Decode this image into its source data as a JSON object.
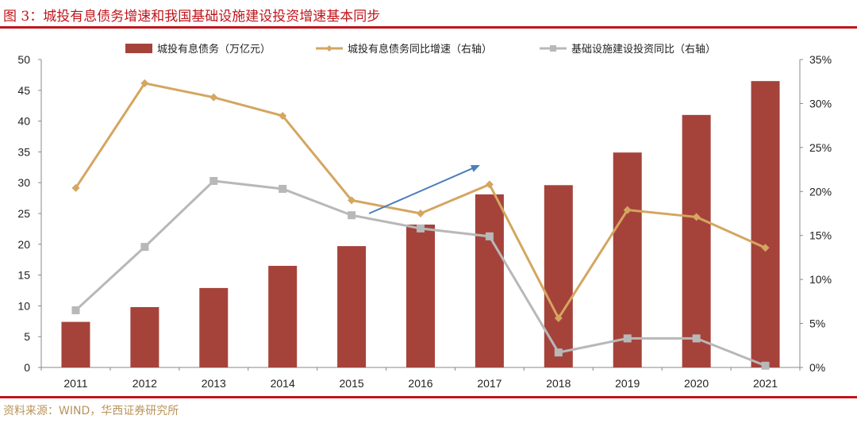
{
  "title": "图 3：城投有息债务增速和我国基础设施建设投资增速基本同步",
  "source": "资料来源：WIND，华西证券研究所",
  "chart_data": {
    "type": "bar+line",
    "categories": [
      "2011",
      "2012",
      "2013",
      "2014",
      "2015",
      "2016",
      "2017",
      "2018",
      "2019",
      "2020",
      "2021"
    ],
    "y_left": {
      "range": [
        0,
        50
      ],
      "ticks": [
        "0",
        "5",
        "10",
        "15",
        "20",
        "25",
        "30",
        "35",
        "40",
        "45",
        "50"
      ]
    },
    "y_right": {
      "range": [
        0,
        35
      ],
      "ticks": [
        "0%",
        "5%",
        "10%",
        "15%",
        "20%",
        "25%",
        "30%",
        "35%"
      ]
    },
    "legend_position": "top",
    "grid": false,
    "series": [
      {
        "name": "城投有息债务（万亿元）",
        "type": "bar",
        "axis": "left",
        "color": "#a5433a",
        "values": [
          7.4,
          9.8,
          12.9,
          16.5,
          19.7,
          23.2,
          28.1,
          29.6,
          34.9,
          41.0,
          46.5
        ]
      },
      {
        "name": "城投有息债务同比增速（右轴）",
        "type": "line",
        "axis": "right",
        "color": "#d4a660",
        "marker": "diamond",
        "values": [
          20.4,
          32.3,
          30.7,
          28.6,
          19.0,
          17.5,
          20.8,
          5.6,
          17.9,
          17.1,
          13.6
        ]
      },
      {
        "name": "基础设施建设投资同比（右轴）",
        "type": "line",
        "axis": "right",
        "color": "#b8b8b8",
        "marker": "square",
        "values": [
          6.5,
          13.7,
          21.2,
          20.3,
          17.3,
          15.8,
          14.9,
          1.7,
          3.3,
          3.3,
          0.2
        ]
      }
    ],
    "annotations": [
      {
        "type": "arrow",
        "color": "#4a7ebb",
        "from": [
          "2015",
          17.5
        ],
        "to": [
          "2017",
          23
        ]
      }
    ]
  }
}
